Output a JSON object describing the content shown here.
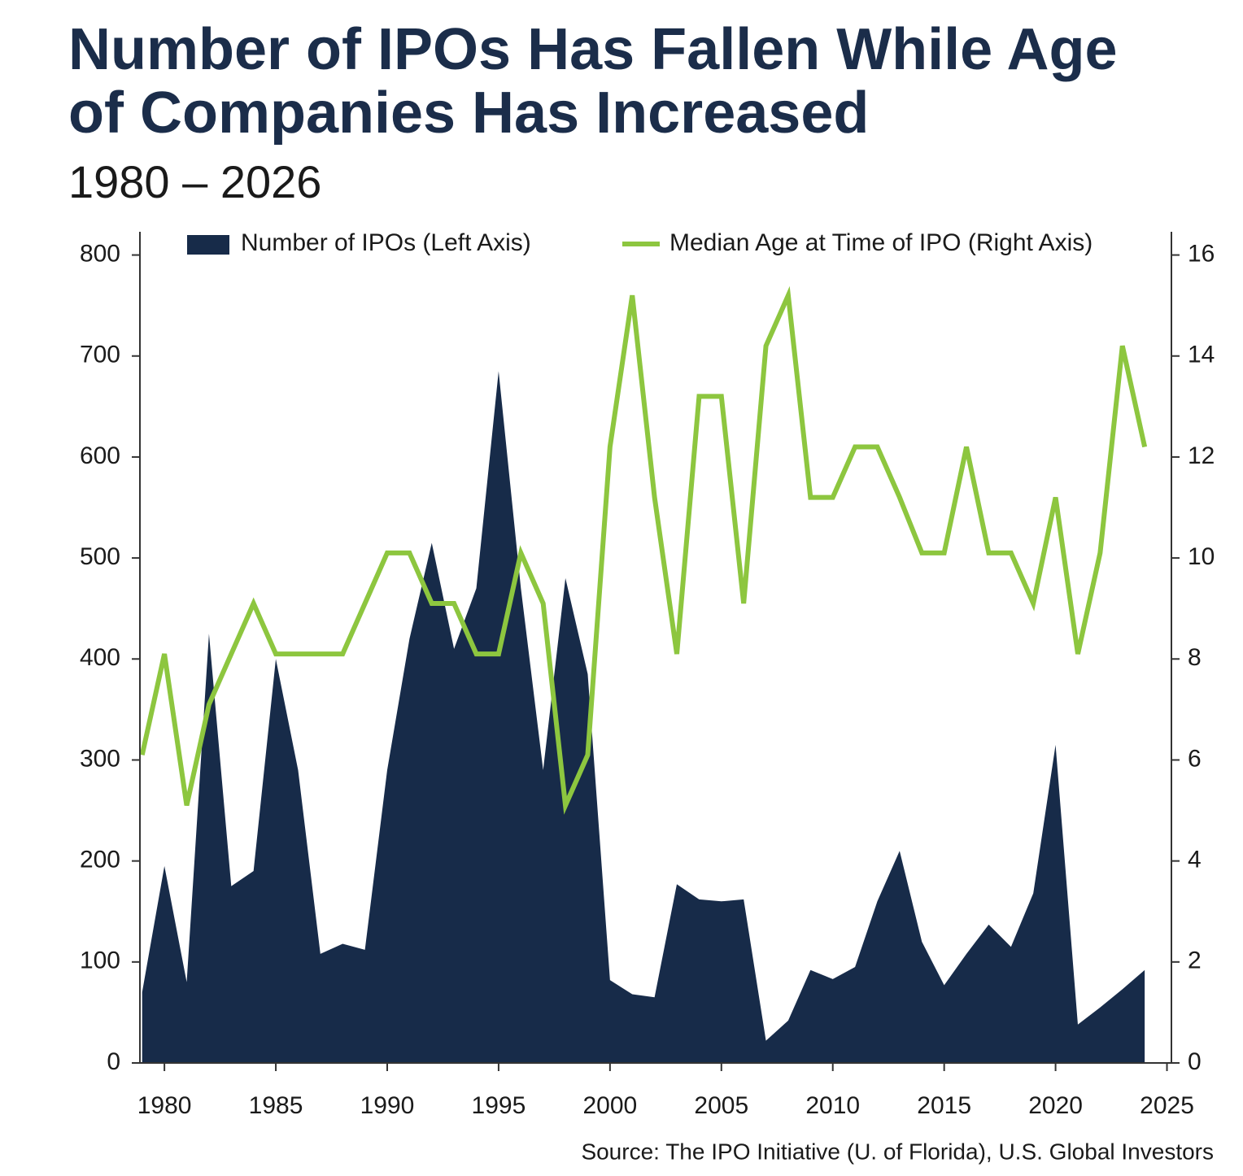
{
  "chart_data": {
    "type": "area",
    "title": "Number of IPOs Has Fallen While Age of Companies Has Increased",
    "subtitle": "1980 – 2026",
    "source": "Source: The IPO Initiative (U. of Florida), U.S. Global Investors",
    "x": [
      1979,
      1980,
      1981,
      1982,
      1983,
      1984,
      1985,
      1986,
      1987,
      1988,
      1989,
      1990,
      1991,
      1992,
      1993,
      1994,
      1995,
      1996,
      1997,
      1998,
      1999,
      2000,
      2001,
      2002,
      2003,
      2004,
      2005,
      2006,
      2007,
      2008,
      2009,
      2010,
      2011,
      2012,
      2013,
      2014,
      2015,
      2016,
      2017,
      2018,
      2019,
      2020,
      2021,
      2022,
      2023,
      2024
    ],
    "series": [
      {
        "name": "Number of IPOs (Left Axis)",
        "color": "#172b49",
        "type": "area",
        "values": [
          70,
          195,
          80,
          425,
          175,
          190,
          400,
          290,
          108,
          118,
          112,
          290,
          420,
          515,
          410,
          470,
          685,
          470,
          290,
          480,
          385,
          82,
          68,
          65,
          177,
          162,
          160,
          162,
          22,
          42,
          92,
          83,
          95,
          160,
          210,
          120,
          77,
          108,
          137,
          115,
          168,
          315,
          38,
          55,
          73,
          92
        ]
      },
      {
        "name": "Median Age at Time of IPO (Right Axis)",
        "color": "#8dc63f",
        "type": "line",
        "axis": "y2",
        "values": [
          6.1,
          8.1,
          5.1,
          7.1,
          8.1,
          9.1,
          8.1,
          8.1,
          8.1,
          8.1,
          9.1,
          10.1,
          10.1,
          9.1,
          9.1,
          8.1,
          8.1,
          10.1,
          9.1,
          5.1,
          6.1,
          12.2,
          15.2,
          11.2,
          8.1,
          13.2,
          13.2,
          9.1,
          14.2,
          15.2,
          11.2,
          11.2,
          12.2,
          12.2,
          11.2,
          10.1,
          10.1,
          12.2,
          10.1,
          10.1,
          9.1,
          11.2,
          8.1,
          10.1,
          14.2,
          12.2
        ]
      }
    ],
    "xlim": [
      1978.9,
      2025.2
    ],
    "xticks": [
      1980,
      1985,
      1990,
      1995,
      2000,
      2005,
      2010,
      2015,
      2020,
      2025
    ],
    "ylim": [
      0,
      823
    ],
    "yticks": [
      0,
      100,
      200,
      300,
      400,
      500,
      600,
      700,
      800
    ],
    "y2lim": [
      0,
      16.46
    ],
    "y2ticks": [
      0,
      2,
      4,
      6,
      8,
      10,
      12,
      14,
      16
    ],
    "legend": "top"
  }
}
